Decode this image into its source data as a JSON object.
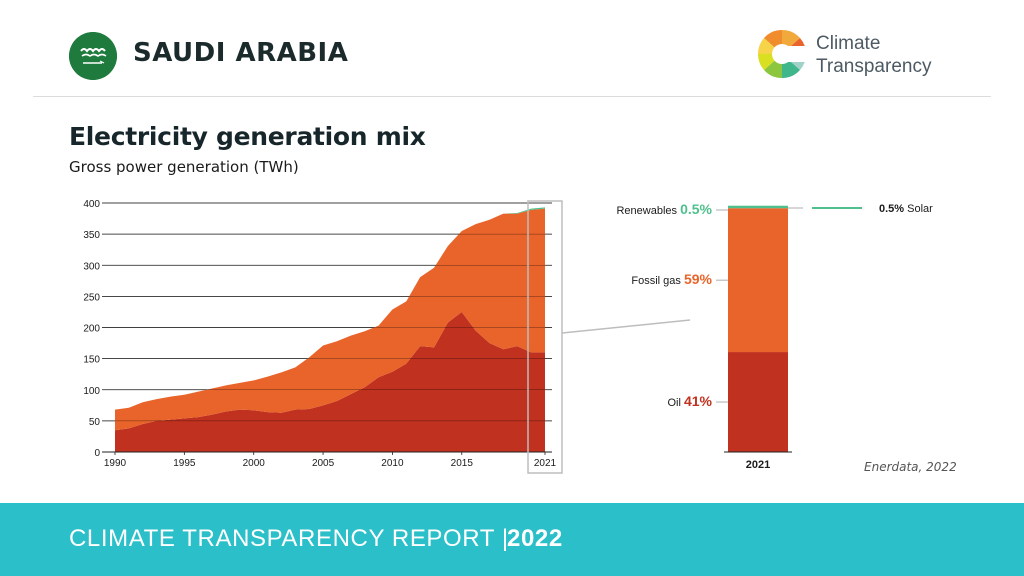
{
  "header": {
    "country": "SAUDI ARABIA",
    "brand_line1": "Climate",
    "brand_line2": "Transparency"
  },
  "title": "Electricity generation mix",
  "subtitle": "Gross power generation (TWh)",
  "source": "Enerdata, 2022",
  "footer": {
    "report": "CLIMATE TRANSPARENCY REPORT |",
    "year": "2022"
  },
  "colors": {
    "oil": "#c1311f",
    "gas": "#e9642a",
    "renewables": "#4fc08d",
    "teal": "#2bbfc9"
  },
  "chart_data": [
    {
      "type": "area",
      "stacked": true,
      "x": [
        1990,
        1991,
        1992,
        1993,
        1994,
        1995,
        1996,
        1997,
        1998,
        1999,
        2000,
        2001,
        2002,
        2003,
        2004,
        2005,
        2006,
        2007,
        2008,
        2009,
        2010,
        2011,
        2012,
        2013,
        2014,
        2015,
        2016,
        2017,
        2018,
        2019,
        2020,
        2021
      ],
      "series": [
        {
          "name": "Oil",
          "values": [
            35,
            38,
            45,
            50,
            52,
            54,
            56,
            60,
            65,
            68,
            67,
            64,
            63,
            68,
            69,
            75,
            82,
            93,
            104,
            120,
            129,
            142,
            170,
            168,
            208,
            225,
            195,
            175,
            165,
            170,
            160,
            160
          ]
        },
        {
          "name": "Fossil gas",
          "values": [
            33,
            33,
            35,
            35,
            37,
            38,
            41,
            42,
            42,
            43,
            48,
            57,
            65,
            68,
            83,
            96,
            96,
            94,
            90,
            83,
            100,
            100,
            111,
            128,
            123,
            130,
            171,
            198,
            218,
            213,
            229,
            231
          ]
        },
        {
          "name": "Renewables",
          "values": [
            0,
            0,
            0,
            0,
            0,
            0,
            0,
            0,
            0,
            0,
            0,
            0,
            0,
            0,
            0,
            0,
            0,
            0,
            0,
            0,
            0,
            0,
            0,
            0,
            0,
            0,
            0,
            0,
            0,
            1,
            2,
            2
          ]
        }
      ],
      "xticks": [
        "1990",
        "1995",
        "2000",
        "2005",
        "2010",
        "2015",
        "2021"
      ],
      "yticks": [
        0,
        50,
        100,
        150,
        200,
        250,
        300,
        350,
        400
      ],
      "ylim": [
        0,
        400
      ],
      "grid": true
    },
    {
      "type": "bar",
      "stacked": true,
      "categories": [
        "2021"
      ],
      "series": [
        {
          "name": "Oil",
          "label": "Oil",
          "share": "41%",
          "value": 41
        },
        {
          "name": "Fossil gas",
          "label": "Fossil gas",
          "share": "59%",
          "value": 59
        },
        {
          "name": "Renewables",
          "label": "Renewables",
          "share": "0.5%",
          "value": 0.5
        }
      ],
      "annotation": {
        "share": "0.5%",
        "label": "Solar"
      }
    }
  ]
}
